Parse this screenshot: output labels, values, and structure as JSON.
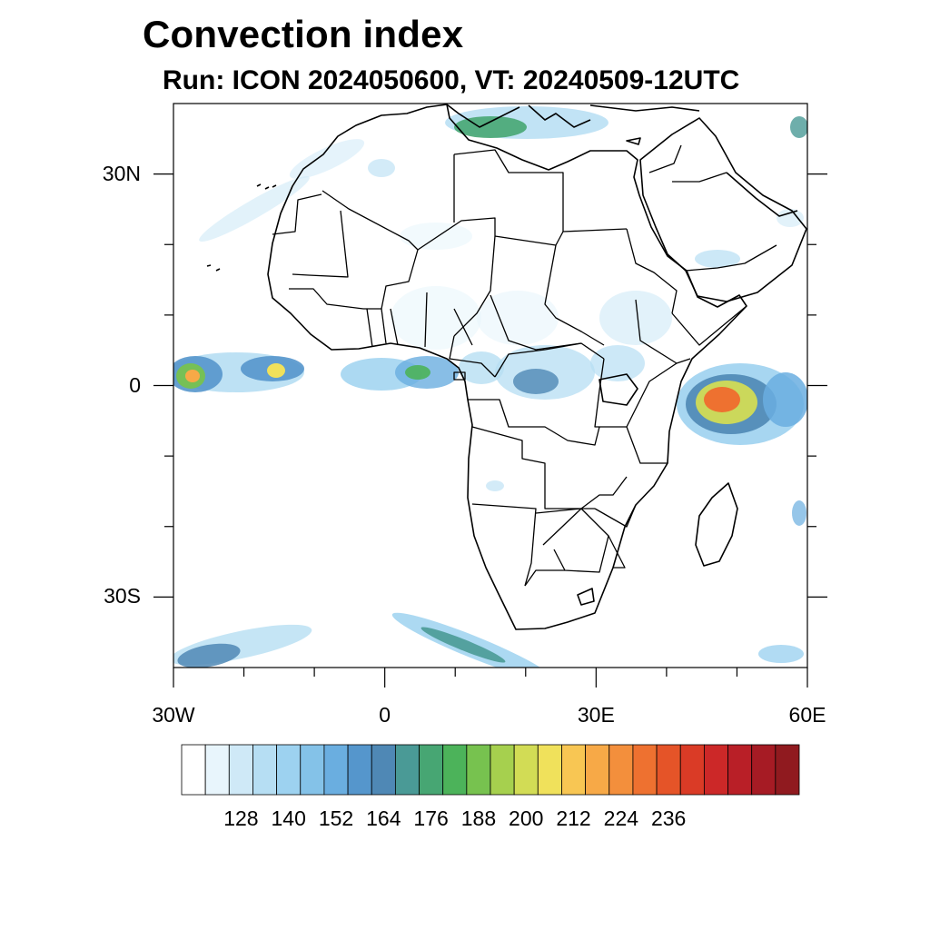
{
  "title": "Convection index",
  "subtitle": "Run: ICON 2024050600,  VT: 20240509-12UTC",
  "map": {
    "lon_range": [
      -30,
      60
    ],
    "lat_range": [
      -40,
      40
    ],
    "lat_ticks": [
      {
        "value": 30,
        "label": "30N"
      },
      {
        "value": 0,
        "label": "0"
      },
      {
        "value": -30,
        "label": "30S"
      }
    ],
    "lon_ticks": [
      {
        "value": -30,
        "label": "30W"
      },
      {
        "value": 0,
        "label": "0"
      },
      {
        "value": 30,
        "label": "30E"
      },
      {
        "value": 60,
        "label": "60E"
      }
    ],
    "coastline_color": "#000000"
  },
  "colorbar": {
    "colors": [
      "#ffffff",
      "#e8f5fc",
      "#cfe9f7",
      "#b6def3",
      "#9dd2f0",
      "#84c2e8",
      "#6aaee0",
      "#5596cc",
      "#4f88b5",
      "#4a9a96",
      "#47a673",
      "#4cb35a",
      "#77c24f",
      "#a6d04e",
      "#d2dc55",
      "#f0e15b",
      "#f8c653",
      "#f7a947",
      "#f38f3c",
      "#ee7130",
      "#e55428",
      "#da3b26",
      "#cc2828",
      "#b91f27",
      "#a61b24",
      "#901a1f"
    ],
    "tick_values": [
      128,
      140,
      152,
      164,
      176,
      188,
      200,
      212,
      224,
      236
    ],
    "tick_labels": [
      "128",
      "140",
      "152",
      "164",
      "176",
      "188",
      "200",
      "212",
      "224",
      "236"
    ]
  }
}
